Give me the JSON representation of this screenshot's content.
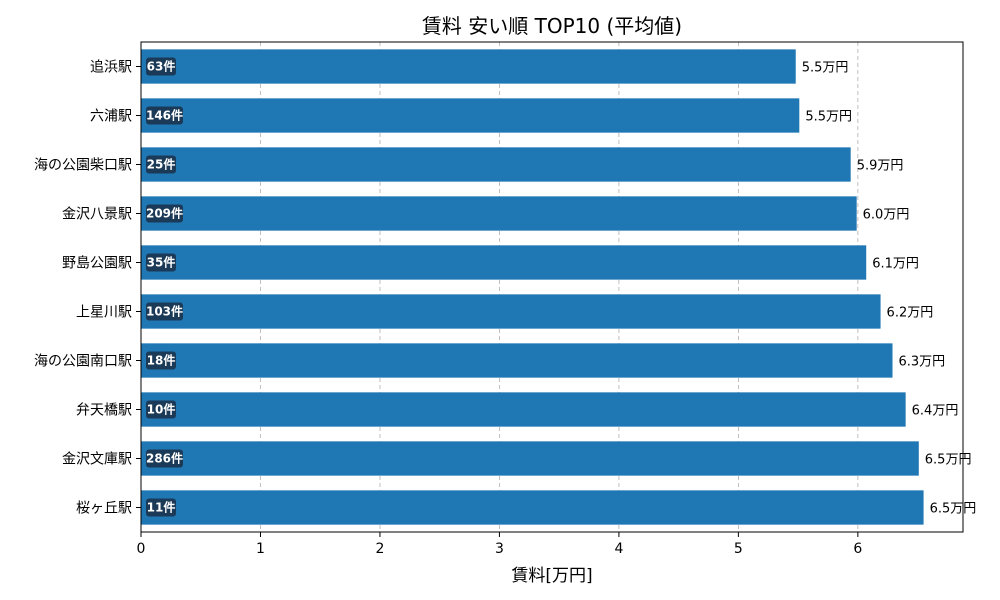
{
  "chart_data": {
    "type": "bar",
    "orientation": "horizontal",
    "title": "賃料 安い順 TOP10 (平均値)",
    "xlabel": "賃料[万円]",
    "ylabel": "",
    "xlim": [
      0,
      6.88
    ],
    "xticks": [
      "0",
      "1",
      "2",
      "3",
      "4",
      "5",
      "6"
    ],
    "grid": "x-dashed",
    "bar_color": "#1f77b4",
    "badge_color": "#1b3a57",
    "categories": [
      "追浜駅",
      "六浦駅",
      "海の公園柴口駅",
      "金沢八景駅",
      "野島公園駅",
      "上星川駅",
      "海の公園南口駅",
      "弁天橋駅",
      "金沢文庫駅",
      "桜ヶ丘駅"
    ],
    "values": [
      5.48,
      5.51,
      5.94,
      5.99,
      6.07,
      6.19,
      6.29,
      6.4,
      6.51,
      6.55
    ],
    "value_labels": [
      "5.5万円",
      "5.5万円",
      "5.9万円",
      "6.0万円",
      "6.1万円",
      "6.2万円",
      "6.3万円",
      "6.4万円",
      "6.5万円",
      "6.5万円"
    ],
    "count_labels": [
      "63件",
      "146件",
      "25件",
      "209件",
      "35件",
      "103件",
      "18件",
      "10件",
      "286件",
      "11件"
    ]
  }
}
